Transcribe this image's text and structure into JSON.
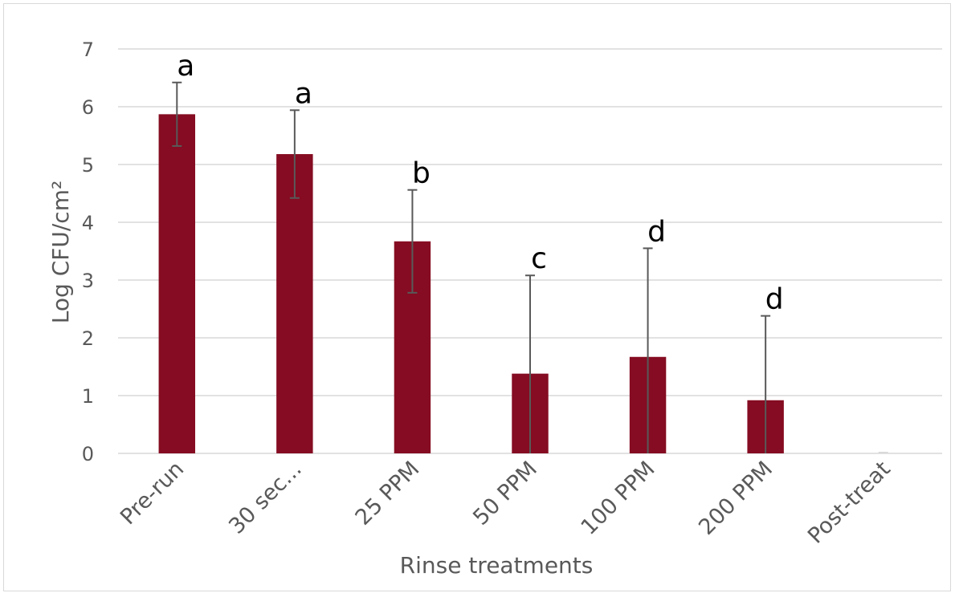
{
  "chart_data": {
    "type": "bar",
    "title": "",
    "xlabel": "Rinse treatments",
    "ylabel": "Log CFU/cm²",
    "categories": [
      "Pre-run",
      "30 sec...",
      "25 PPM",
      "50 PPM",
      "100 PPM",
      "200 PPM",
      "Post-treat"
    ],
    "values": [
      5.87,
      5.18,
      3.67,
      1.38,
      1.67,
      0.92,
      0
    ],
    "error_bars": [
      0.55,
      0.76,
      0.89,
      1.7,
      1.88,
      1.46,
      0
    ],
    "significance_labels": [
      "a",
      "a",
      "b",
      "c",
      "d",
      "d",
      ""
    ],
    "ylim": [
      0,
      7
    ],
    "yticks": [
      0,
      1,
      2,
      3,
      4,
      5,
      6,
      7
    ],
    "grid": true,
    "legend": "none",
    "colors": {
      "bar": "#850c22",
      "error_bar": "#595959",
      "grid": "#d9d9d9"
    }
  }
}
